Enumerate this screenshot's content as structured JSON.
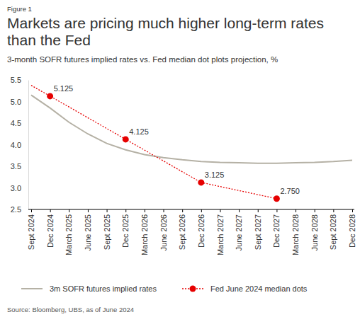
{
  "chart_data": {
    "type": "line",
    "caption": "Figure 1",
    "title": "Markets are pricing much higher long-term rates than the Fed",
    "subtitle": "3-month SOFR futures implied rates vs. Fed median dot plots projection, %",
    "source": "Source: Bloomberg, UBS, as of June 2024",
    "categories": [
      "Sept 2024",
      "Dec 2024",
      "March 2025",
      "June 2025",
      "Sept 2025",
      "Dec 2025",
      "March 2026",
      "June 2026",
      "Sept 2026",
      "Dec 2026",
      "March 2027",
      "June 2027",
      "Sept 2027",
      "Dec 2027",
      "March 2028",
      "June 2028",
      "Sept 2028",
      "Dec 2028"
    ],
    "series": [
      {
        "name": "3m SOFR futures implied rates",
        "color": "#b5b1a5",
        "type": "line",
        "line_style": "solid",
        "marker": "none",
        "values": [
          5.15,
          4.85,
          4.52,
          4.25,
          4.03,
          3.88,
          3.77,
          3.7,
          3.65,
          3.61,
          3.59,
          3.58,
          3.57,
          3.57,
          3.58,
          3.59,
          3.61,
          3.64
        ]
      },
      {
        "name": "Fed June 2024 median dots",
        "color": "#e60000",
        "type": "line",
        "line_style": "dotted",
        "marker": "circle",
        "x": [
          "Sept 2024",
          "Dec 2024",
          "Dec 2025",
          "Dec 2026",
          "Dec 2027"
        ],
        "values": [
          5.375,
          5.125,
          4.125,
          3.125,
          2.75
        ],
        "value_labels": [
          null,
          "5.125",
          "4.125",
          "3.125",
          "2.750"
        ],
        "data_labels": true
      }
    ],
    "ylim": [
      2.5,
      5.5
    ],
    "yticks": [
      2.5,
      {
        "value": 3,
        "label": "3.0"
      },
      3.5,
      {
        "value": 4,
        "label": "4.0"
      },
      4.5,
      {
        "value": 5,
        "label": "5.0"
      },
      5.5
    ],
    "grid": false,
    "legend": "bottom"
  }
}
